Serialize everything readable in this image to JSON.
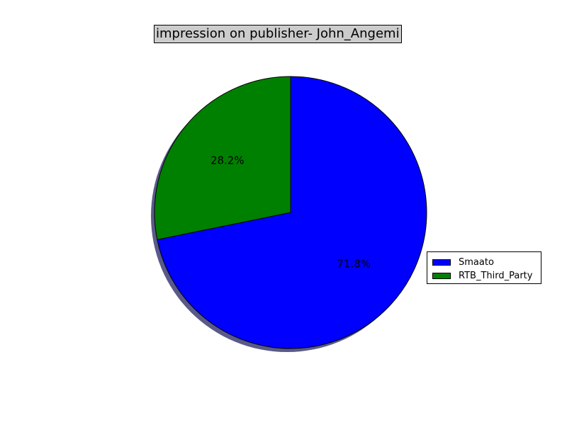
{
  "chart_data": {
    "type": "pie",
    "title": "impression on publisher- John_Angemi",
    "start_angle_deg": 90,
    "direction": "clockwise-from-top",
    "shadow": true,
    "legend_position": "right",
    "slices": [
      {
        "label": "Smaato",
        "value": 71.8,
        "pct_label": "71.8%",
        "color": "#0000ff"
      },
      {
        "label": "RTB_Third_Party",
        "value": 28.2,
        "pct_label": "28.2%",
        "color": "#008000"
      }
    ]
  }
}
